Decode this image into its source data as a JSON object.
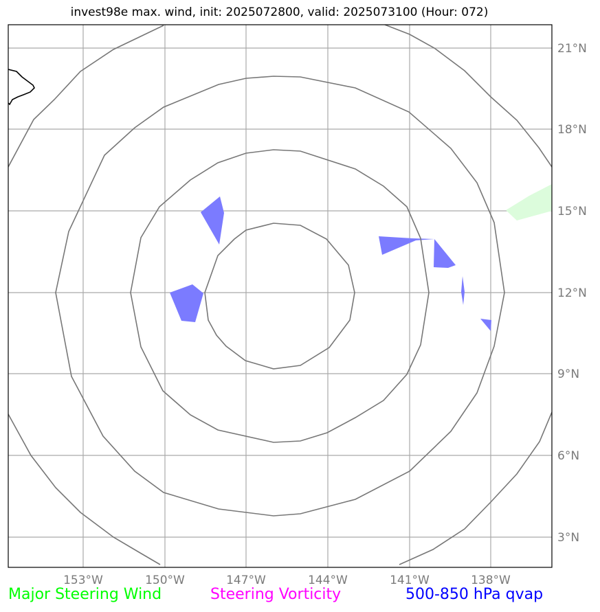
{
  "title": "invest98e max. wind, init: 2025072800, valid: 2025073100 (Hour: 072)",
  "map": {
    "lon_range": [
      -156,
      -136
    ],
    "lat_range": [
      2,
      22
    ],
    "lon_ticks": [
      "153°W",
      "150°W",
      "147°W",
      "144°W",
      "141°W",
      "138°W"
    ],
    "lat_ticks": [
      "21°N",
      "18°N",
      "15°N",
      "12°N",
      "9°N",
      "6°N",
      "3°N"
    ],
    "range_rings_center": {
      "lon": -146,
      "lat": 12
    },
    "features": [
      {
        "name": "blue-shape-1",
        "type": "qvap-patch",
        "color": "#7b7bff"
      },
      {
        "name": "blue-shape-2",
        "type": "qvap-patch",
        "color": "#7b7bff"
      },
      {
        "name": "blue-shape-3",
        "type": "qvap-patch",
        "color": "#7b7bff"
      },
      {
        "name": "green-shape",
        "type": "steering-wind-patch",
        "color": "#dcfcdc"
      }
    ]
  },
  "legend": {
    "wind": {
      "label": "Major Steering Wind",
      "color": "#00ff00"
    },
    "vorticity": {
      "label": "Steering Vorticity",
      "color": "#ff00ff"
    },
    "qvap": {
      "label": "500-850 hPa qvap",
      "color": "#0000ff"
    }
  }
}
